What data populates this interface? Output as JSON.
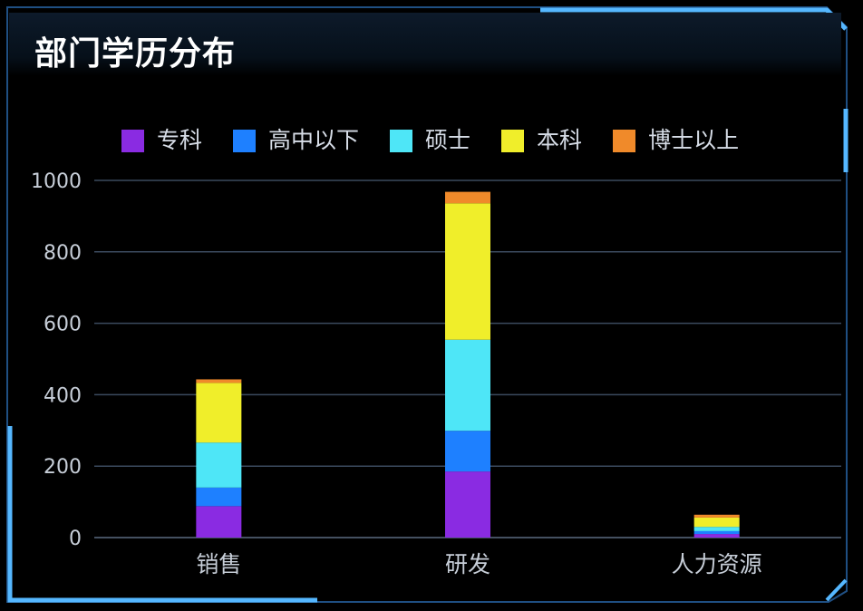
{
  "panel": {
    "title": "部门学历分布"
  },
  "colors": {
    "frame": "#2b6fb0",
    "frame_accent": "#55b7ff",
    "grid": "#3b4a5e"
  },
  "chart_data": {
    "type": "bar",
    "stacked": true,
    "title": "部门学历分布",
    "categories": [
      "销售",
      "研发",
      "人力资源"
    ],
    "series": [
      {
        "name": "专科",
        "color": "#8a2be2",
        "values": [
          88,
          185,
          10
        ]
      },
      {
        "name": "高中以下",
        "color": "#1e80ff",
        "values": [
          52,
          114,
          8
        ]
      },
      {
        "name": "硕士",
        "color": "#4ee6f7",
        "values": [
          126,
          255,
          12
        ]
      },
      {
        "name": "本科",
        "color": "#f0ee2a",
        "values": [
          167,
          382,
          26
        ]
      },
      {
        "name": "博士以上",
        "color": "#f08a2a",
        "values": [
          10,
          32,
          8
        ]
      }
    ],
    "ylim": [
      0,
      1000
    ],
    "yticks": [
      "0",
      "200",
      "400",
      "600",
      "800",
      "1000"
    ],
    "grid": true,
    "legend": "top"
  }
}
